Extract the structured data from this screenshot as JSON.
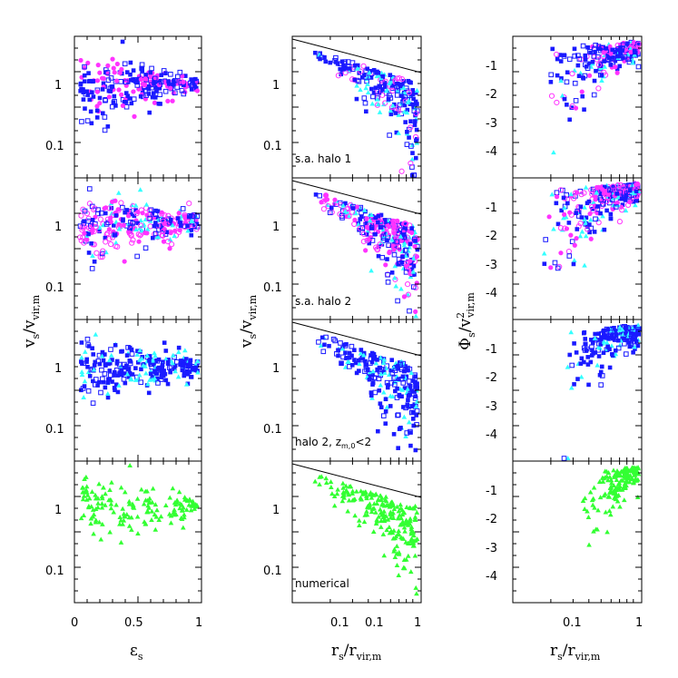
{
  "figure": {
    "columns": [
      {
        "xlabel_main": "ε",
        "xlabel_sub": "s",
        "ylabel_main": "v",
        "ylabel_sub": "s",
        "ylabel_den": "/v",
        "ylabel_den_sub": "vir,m"
      },
      {
        "xlabel_main": "r",
        "xlabel_sub": "s",
        "xlabel_den": "/r",
        "xlabel_den_sub": "vir,m",
        "ylabel_main": "v",
        "ylabel_sub": "s",
        "ylabel_den": "/v",
        "ylabel_den_sub": "vir,m"
      },
      {
        "xlabel_main": "r",
        "xlabel_sub": "s",
        "xlabel_den": "/r",
        "xlabel_den_sub": "vir,m",
        "ylabel_main": "Φ",
        "ylabel_sub": "s",
        "ylabel_den": "/v",
        "ylabel_den_sup": "2",
        "ylabel_den_sub": "vir,m"
      }
    ],
    "row_annotations": [
      "s.a. halo 1",
      "s.a. halo 2",
      "halo 2, z",
      "numerical"
    ],
    "row3_annot_sub": "m,0",
    "row3_annot_tail": "<2",
    "colors": {
      "magenta": "#ff33ff",
      "blue": "#1a1aff",
      "cyan": "#33ffff",
      "green": "#33ff33",
      "axes": "#000000"
    }
  },
  "chart_data": [
    {
      "type": "scatter",
      "panel": "column 1",
      "x_scale": "linear",
      "xlim": [
        0,
        1
      ],
      "y_scale": "log",
      "ylim": [
        0.03,
        5
      ],
      "xticklabels": [
        "0",
        "0.5",
        "1"
      ],
      "yticklabels": [
        "1",
        "0.1"
      ],
      "series_by_row": [
        [
          "magenta filled circles",
          "magenta open circles",
          "blue filled squares",
          "blue open squares"
        ],
        [
          "magenta filled circles",
          "magenta open circles",
          "blue filled squares",
          "blue open squares",
          "cyan triangles"
        ],
        [
          "blue filled squares",
          "blue open squares",
          "cyan triangles"
        ],
        [
          "green triangles"
        ]
      ]
    },
    {
      "type": "scatter",
      "panel": "column 2",
      "x_scale": "log",
      "xlim": [
        0.012,
        1
      ],
      "y_scale": "log",
      "ylim": [
        0.03,
        5
      ],
      "xticklabels": [
        "0.1",
        "0.1",
        "1"
      ],
      "yticklabels": [
        "1",
        "0.1"
      ],
      "reference_line": "straight line from top-left to right edge",
      "series_by_row": [
        [
          "magenta",
          "blue",
          "cyan"
        ],
        [
          "magenta",
          "blue",
          "cyan"
        ],
        [
          "blue",
          "cyan"
        ],
        [
          "green"
        ]
      ]
    },
    {
      "type": "scatter",
      "panel": "column 3",
      "x_scale": "log",
      "xlim": [
        0.012,
        1
      ],
      "y_scale": "linear",
      "ylim": [
        -5,
        0
      ],
      "xticklabels": [
        "0.1",
        "1"
      ],
      "yticklabels": [
        "-1",
        "-2",
        "-3",
        "-4"
      ],
      "series_by_row": [
        [
          "magenta",
          "blue",
          "cyan"
        ],
        [
          "magenta",
          "blue",
          "cyan"
        ],
        [
          "blue",
          "cyan"
        ],
        [
          "green"
        ]
      ]
    }
  ]
}
